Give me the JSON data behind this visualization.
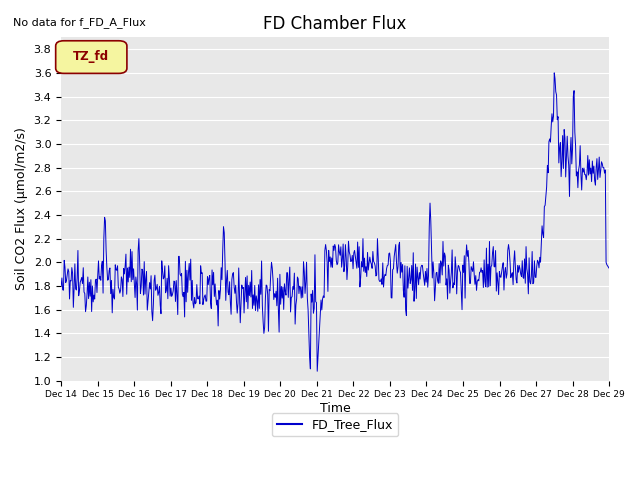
{
  "title": "FD Chamber Flux",
  "no_data_text": "No data for f_FD_A_Flux",
  "ylabel": "Soil CO2 Flux (μmol/m2/s)",
  "xlabel": "Time",
  "ylim": [
    1.0,
    3.9
  ],
  "yticks": [
    1.0,
    1.2,
    1.4,
    1.6,
    1.8,
    2.0,
    2.2,
    2.4,
    2.6,
    2.8,
    3.0,
    3.2,
    3.4,
    3.6,
    3.8
  ],
  "line_color": "#0000cc",
  "line_label": "FD_Tree_Flux",
  "bg_color": "#e8e8e8",
  "legend_label_color": "#8b0000",
  "legend_bg": "#f5f5a0",
  "legend_border": "#8b0000",
  "title_fontsize": 12,
  "label_fontsize": 9,
  "tick_fontsize": 8,
  "nodata_fontsize": 8,
  "xtick_labels": [
    "Dec 14",
    "Dec 15",
    "Dec 16",
    "Dec 17",
    "Dec 18",
    "Dec 19",
    "Dec 20",
    "Dec 21",
    "Dec 22",
    "Dec 23",
    "Dec 24",
    "Dec 25",
    "Dec 26",
    "Dec 27",
    "Dec 28",
    "Dec 29"
  ]
}
